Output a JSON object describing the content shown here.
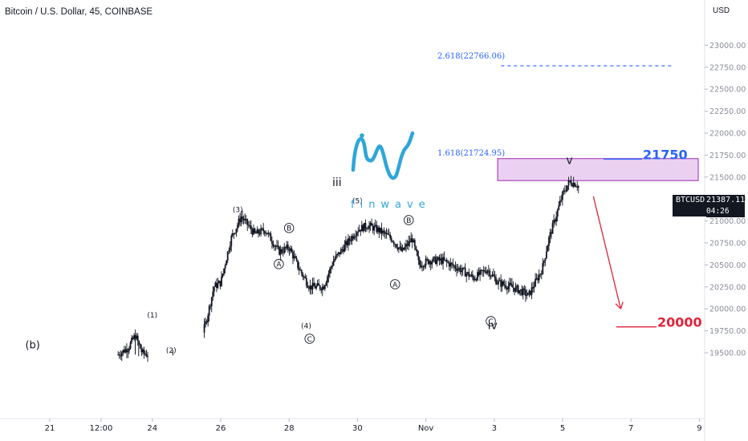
{
  "header": {
    "title": "Bitcoin / U.S. Dollar, 45, COINBASE"
  },
  "axis": {
    "currency": "USD"
  },
  "price_tag": {
    "symbol": "BTCUSD",
    "price": "21387.11",
    "countdown": "04:26"
  },
  "logo": {
    "text": "finwave"
  },
  "colors": {
    "candle": "#131722",
    "fib": "#2962ff",
    "zone_fill": "#e6c9ee",
    "zone_border": "#9c27b0",
    "target_low": "#e0233b",
    "arrow": "#e0233b",
    "logo": "#2fa6d9"
  },
  "chart_data": {
    "type": "candlestick",
    "title": "Bitcoin / U.S. Dollar, 45, COINBASE",
    "ylabel": "USD",
    "ylim": [
      19450,
      23050
    ],
    "y_ticks": [
      "23000.00",
      "22750.00",
      "22500.00",
      "22250.00",
      "22000.00",
      "21750.00",
      "21500.00",
      "21250.00",
      "21000.00",
      "20750.00",
      "20500.00",
      "20250.00",
      "20000.00",
      "19750.00",
      "19500.00"
    ],
    "x_ticks": [
      "21",
      "12:00",
      "24",
      "26",
      "28",
      "30",
      "Nov",
      "3",
      "5",
      "7",
      "9"
    ],
    "current_price": 21387.11,
    "price_path": [
      [
        20.4,
        19450
      ],
      [
        22.6,
        19450
      ],
      [
        22.8,
        19500
      ],
      [
        23.0,
        19480
      ],
      [
        23.3,
        19560
      ],
      [
        23.5,
        19700
      ],
      [
        23.7,
        19500
      ],
      [
        24.0,
        19460
      ],
      [
        24.6,
        19480
      ],
      [
        25.3,
        19460
      ],
      [
        25.6,
        19900
      ],
      [
        25.8,
        20250
      ],
      [
        26.0,
        20300
      ],
      [
        26.3,
        20800
      ],
      [
        26.6,
        21050
      ],
      [
        27.0,
        20850
      ],
      [
        27.3,
        20900
      ],
      [
        27.7,
        20650
      ],
      [
        28.0,
        20700
      ],
      [
        28.3,
        20450
      ],
      [
        28.6,
        20250
      ],
      [
        29.0,
        20250
      ],
      [
        29.3,
        20550
      ],
      [
        29.6,
        20700
      ],
      [
        30.0,
        20900
      ],
      [
        30.3,
        20950
      ],
      [
        30.6,
        20900
      ],
      [
        31.0,
        20800
      ],
      [
        31.3,
        20650
      ],
      [
        31.6,
        20800
      ],
      [
        31.8,
        20500
      ],
      [
        32.1,
        20550
      ],
      [
        32.5,
        20550
      ],
      [
        33.0,
        20450
      ],
      [
        33.4,
        20350
      ],
      [
        33.8,
        20450
      ],
      [
        34.1,
        20300
      ],
      [
        34.5,
        20250
      ],
      [
        34.8,
        20200
      ],
      [
        35.0,
        20150
      ],
      [
        35.4,
        20450
      ],
      [
        35.6,
        20800
      ],
      [
        35.8,
        21050
      ],
      [
        36.0,
        21300
      ],
      [
        36.2,
        21450
      ],
      [
        36.4,
        21420
      ],
      [
        36.5,
        21380
      ]
    ],
    "wave_labels": [
      {
        "text": "(b)",
        "x": 20.5,
        "y": 19550
      },
      {
        "text": "(1)",
        "x": 24.0,
        "y": 19900
      },
      {
        "text": "(2)",
        "x": 24.55,
        "y": 19500
      },
      {
        "text": "(3)",
        "x": 26.5,
        "y": 21100
      },
      {
        "text": "(4)",
        "x": 28.5,
        "y": 19780
      },
      {
        "text": "(5)",
        "x": 30.0,
        "y": 21200
      },
      {
        "text": "iii",
        "x": 29.4,
        "y": 21400
      },
      {
        "text": "A",
        "x": 27.7,
        "y": 20510,
        "circled": true
      },
      {
        "text": "B",
        "x": 28.0,
        "y": 20920,
        "circled": true
      },
      {
        "text": "C",
        "x": 28.6,
        "y": 19660,
        "circled": true
      },
      {
        "text": "A",
        "x": 31.1,
        "y": 20280,
        "circled": true
      },
      {
        "text": "B",
        "x": 31.5,
        "y": 21010,
        "circled": true
      },
      {
        "text": "C",
        "x": 33.9,
        "y": 19860,
        "circled": true
      },
      {
        "text": "iv",
        "x": 33.95,
        "y": 19770
      },
      {
        "text": "v",
        "x": 36.2,
        "y": 21650
      }
    ],
    "fib_levels": [
      {
        "label": "2.618(22766.06)",
        "price": 22766.06,
        "x_start": 34.2,
        "x_end": 39.2,
        "style": "dashed"
      },
      {
        "label": "1.618(21724.95)",
        "price": 21724.95,
        "x_start": null,
        "x_end": null,
        "style": "label-only"
      }
    ],
    "zones": [
      {
        "price_low": 21460,
        "price_high": 21710,
        "x_start": 34.1,
        "x_end": 40.1
      }
    ],
    "targets": [
      {
        "text": "21750",
        "price": 21750,
        "x_start": 38.4,
        "x_end": 38.8,
        "color": "#2962ff"
      },
      {
        "text": "20000",
        "price": 19840,
        "x_start": 38.2,
        "x_end": 38.7,
        "color": "#e0233b"
      }
    ],
    "arrow": {
      "from": [
        36.9,
        21280
      ],
      "to": [
        37.7,
        20000
      ]
    }
  }
}
